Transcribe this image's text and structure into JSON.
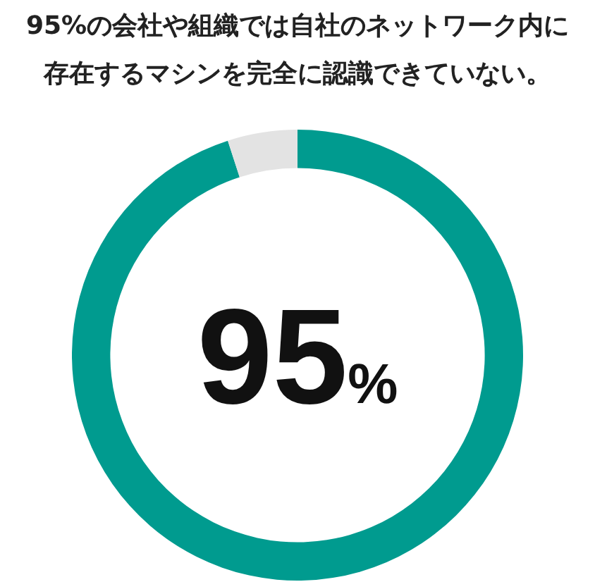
{
  "chart_data": {
    "type": "donut",
    "title": "95%の会社や組織では自社のネットワーク内に存在するマシンを完全に認識できていない。",
    "categories": [
      null,
      null
    ],
    "values": [
      95,
      5
    ],
    "colors": [
      "#009b8f",
      "#e3e3e3"
    ],
    "annotations": [
      "95%"
    ]
  }
}
